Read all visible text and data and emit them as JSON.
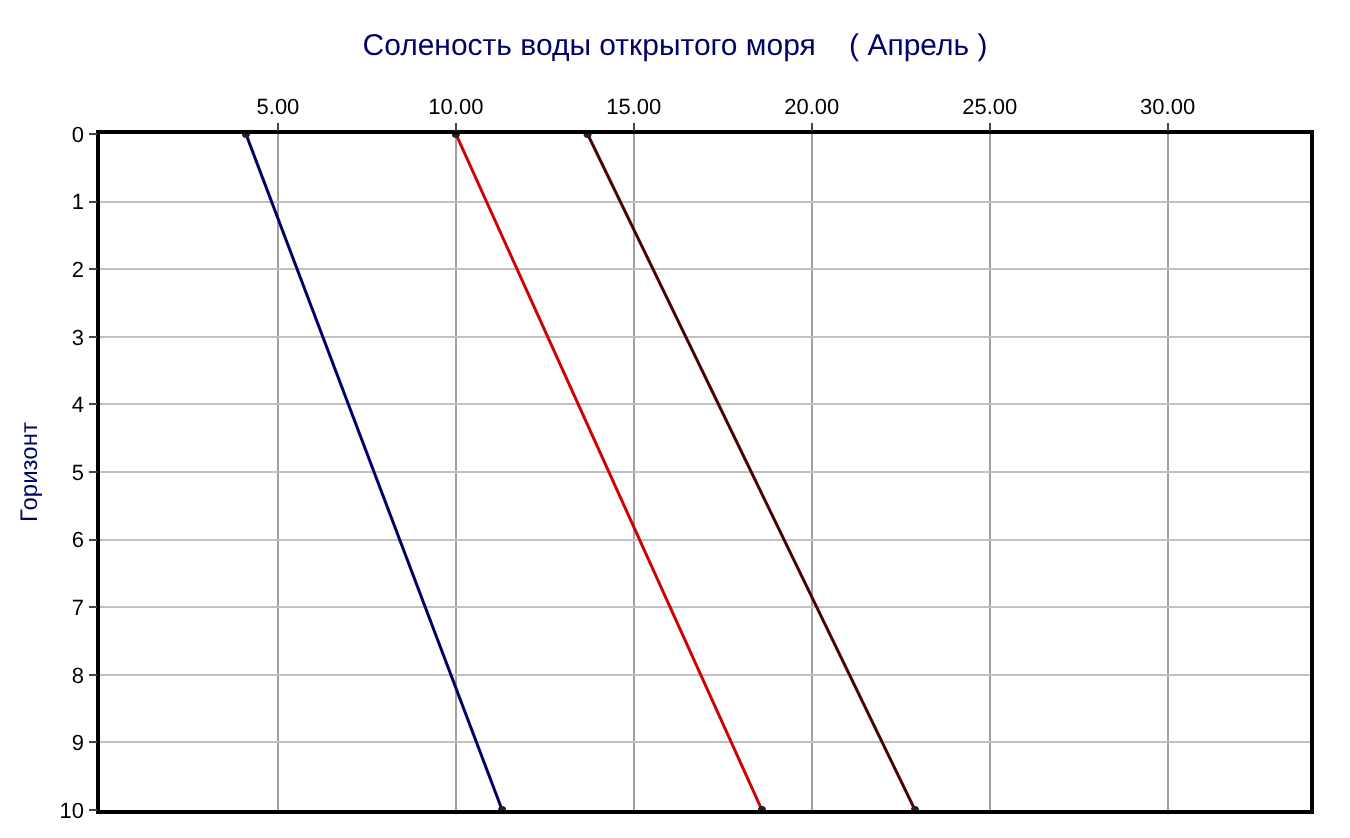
{
  "chart_data": {
    "type": "line",
    "title": "Соленость воды открытого моря    ( Апрель )",
    "ylabel": "Горизонт",
    "series": [
      {
        "color": "#000066",
        "x": [
          4.1,
          11.3
        ],
        "values": [
          0,
          10
        ]
      },
      {
        "color": "#cc0000",
        "x": [
          10.0,
          18.6
        ],
        "values": [
          0,
          10
        ]
      },
      {
        "color": "#4a0000",
        "x": [
          13.7,
          22.9
        ],
        "values": [
          0,
          10
        ]
      }
    ],
    "xlim": [
      0,
      34
    ],
    "xticks": [
      {
        "value": 5,
        "label": "5.00"
      },
      {
        "value": 10,
        "label": "10.00"
      },
      {
        "value": 15,
        "label": "15.00"
      },
      {
        "value": 20,
        "label": "20.00"
      },
      {
        "value": 25,
        "label": "25.00"
      },
      {
        "value": 30,
        "label": "30.00"
      }
    ],
    "ylim": [
      10,
      0
    ],
    "yticks": [
      0,
      1,
      2,
      3,
      4,
      5,
      6,
      7,
      8,
      9,
      10
    ],
    "grid": true,
    "marker": "circle",
    "line_style": "solid"
  }
}
